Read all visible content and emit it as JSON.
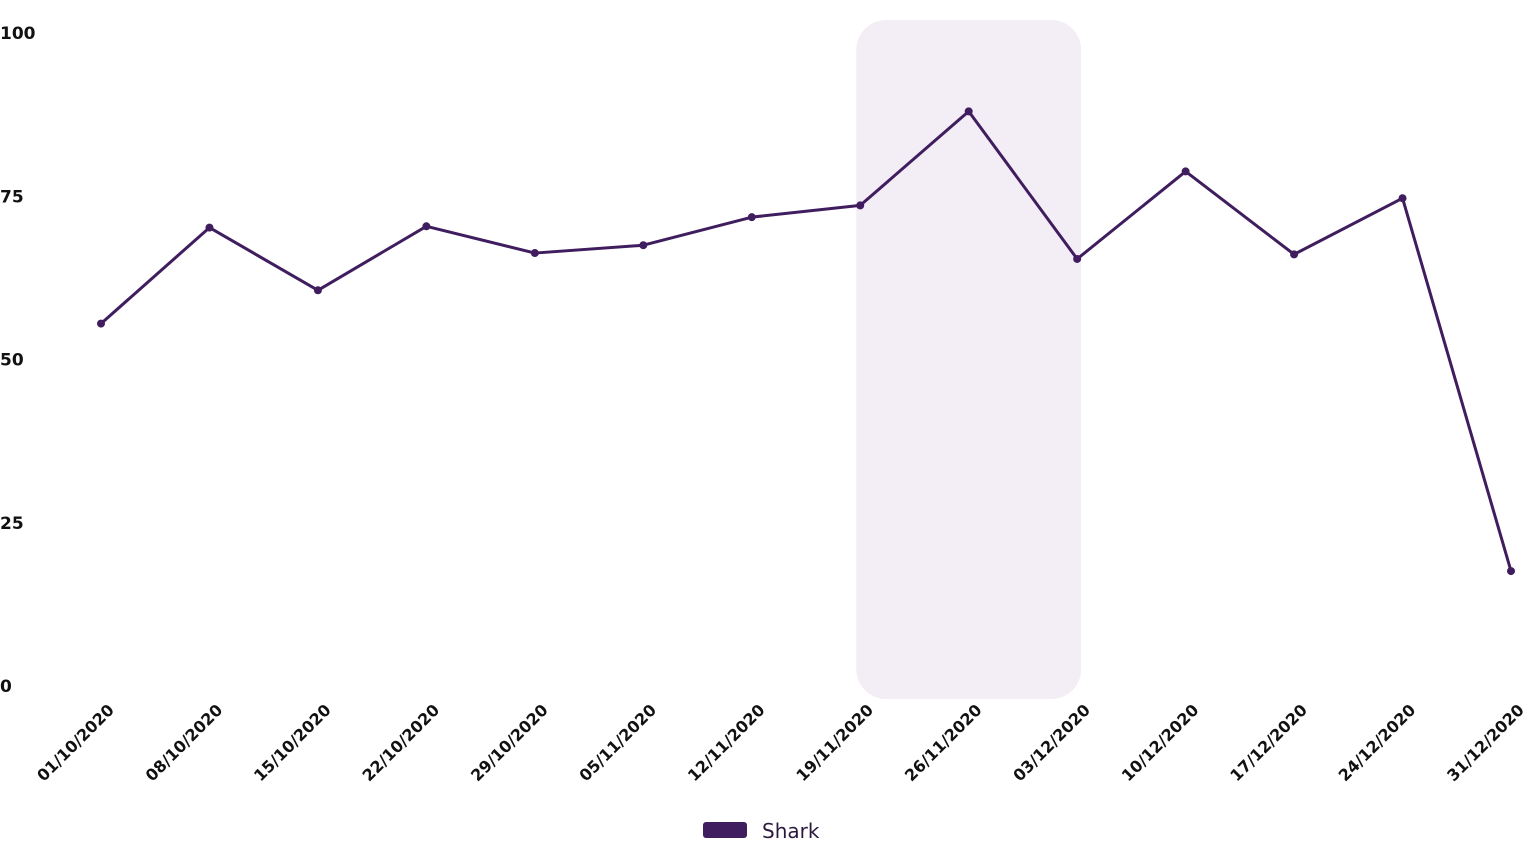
{
  "chart_data": {
    "type": "line",
    "title": "",
    "xlabel": "",
    "ylabel": "",
    "x": [
      "01/10/2020",
      "08/10/2020",
      "15/10/2020",
      "22/10/2020",
      "29/10/2020",
      "05/11/2020",
      "12/11/2020",
      "19/11/2020",
      "26/11/2020",
      "03/12/2020",
      "10/12/2020",
      "17/12/2020",
      "24/12/2020",
      "31/12/2020"
    ],
    "series": [
      {
        "name": "Shark",
        "color": "#3f1d5e",
        "values": [
          55.5,
          70.2,
          60.6,
          70.4,
          66.3,
          67.5,
          71.8,
          73.6,
          88.0,
          65.4,
          78.8,
          66.1,
          74.7,
          17.6
        ]
      }
    ],
    "ylim": [
      0,
      100
    ],
    "yticks": [
      "0",
      "25",
      "50",
      "75",
      "100"
    ],
    "highlight": {
      "from": "19/11/2020",
      "to": "03/12/2020",
      "color": "#f3edf5"
    },
    "grid": false,
    "legend_position": "bottom-center"
  }
}
